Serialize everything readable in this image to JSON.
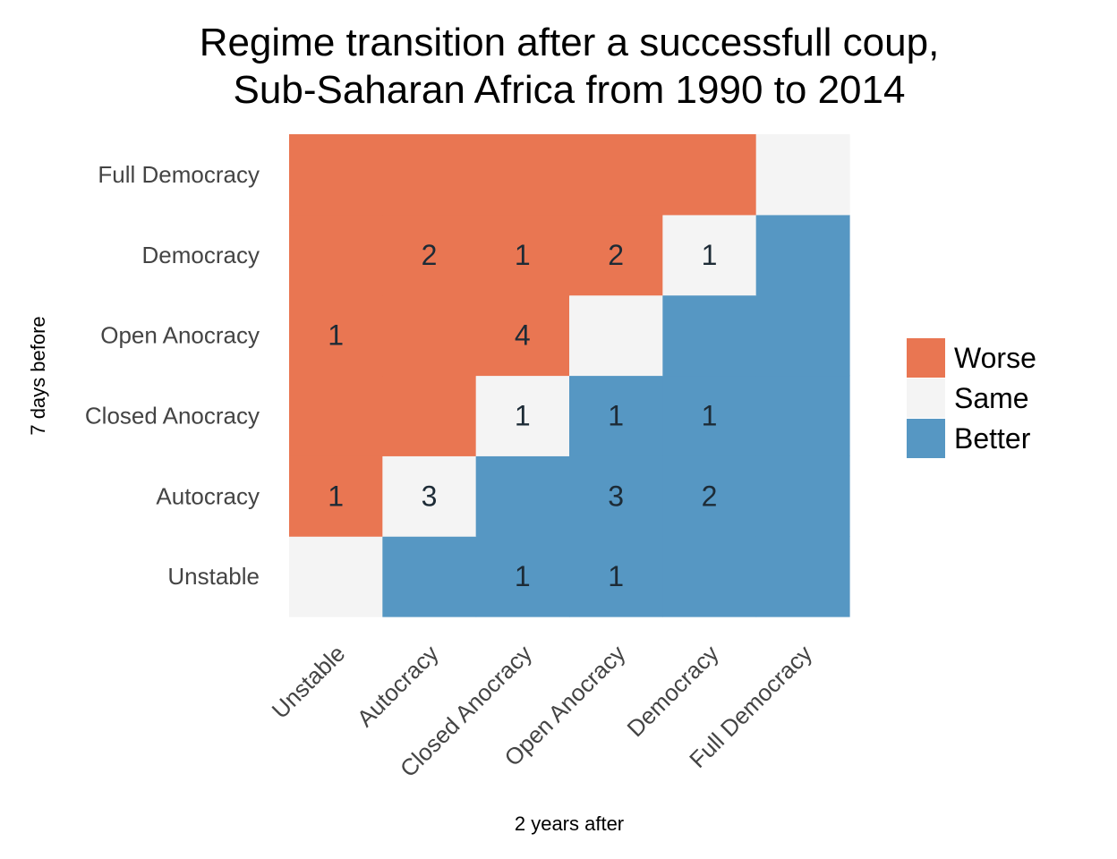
{
  "chart_data": {
    "type": "heatmap",
    "title": "Regime transition after a successfull coup,\nSub-Saharan Africa from 1990 to 2014",
    "title_lines": [
      "Regime transition after a successfull coup,",
      "Sub-Saharan Africa from 1990 to 2014"
    ],
    "xlabel": "2 years after",
    "ylabel": "7 days before",
    "x_categories": [
      "Unstable",
      "Autocracy",
      "Closed Anocracy",
      "Open Anocracy",
      "Democracy",
      "Full Democracy"
    ],
    "y_categories": [
      "Unstable",
      "Autocracy",
      "Closed Anocracy",
      "Open Anocracy",
      "Democracy",
      "Full Democracy"
    ],
    "fill_rule": "row index > column index = Worse; equal = Same; row index < column index = Better",
    "counts": [
      {
        "before": "Democracy",
        "after": "Autocracy",
        "value": 2
      },
      {
        "before": "Democracy",
        "after": "Closed Anocracy",
        "value": 1
      },
      {
        "before": "Democracy",
        "after": "Open Anocracy",
        "value": 2
      },
      {
        "before": "Democracy",
        "after": "Democracy",
        "value": 1
      },
      {
        "before": "Open Anocracy",
        "after": "Unstable",
        "value": 1
      },
      {
        "before": "Open Anocracy",
        "after": "Closed Anocracy",
        "value": 4
      },
      {
        "before": "Closed Anocracy",
        "after": "Closed Anocracy",
        "value": 1
      },
      {
        "before": "Closed Anocracy",
        "after": "Open Anocracy",
        "value": 1
      },
      {
        "before": "Closed Anocracy",
        "after": "Democracy",
        "value": 1
      },
      {
        "before": "Autocracy",
        "after": "Unstable",
        "value": 1
      },
      {
        "before": "Autocracy",
        "after": "Autocracy",
        "value": 3
      },
      {
        "before": "Autocracy",
        "after": "Open Anocracy",
        "value": 3
      },
      {
        "before": "Autocracy",
        "after": "Democracy",
        "value": 2
      },
      {
        "before": "Unstable",
        "after": "Closed Anocracy",
        "value": 1
      },
      {
        "before": "Unstable",
        "after": "Open Anocracy",
        "value": 1
      }
    ],
    "legend": {
      "placement": "right",
      "entries": [
        {
          "label": "Worse",
          "color": "#E97652"
        },
        {
          "label": "Same",
          "color": "#F4F4F4"
        },
        {
          "label": "Better",
          "color": "#5697C3"
        }
      ]
    },
    "grid": false
  }
}
